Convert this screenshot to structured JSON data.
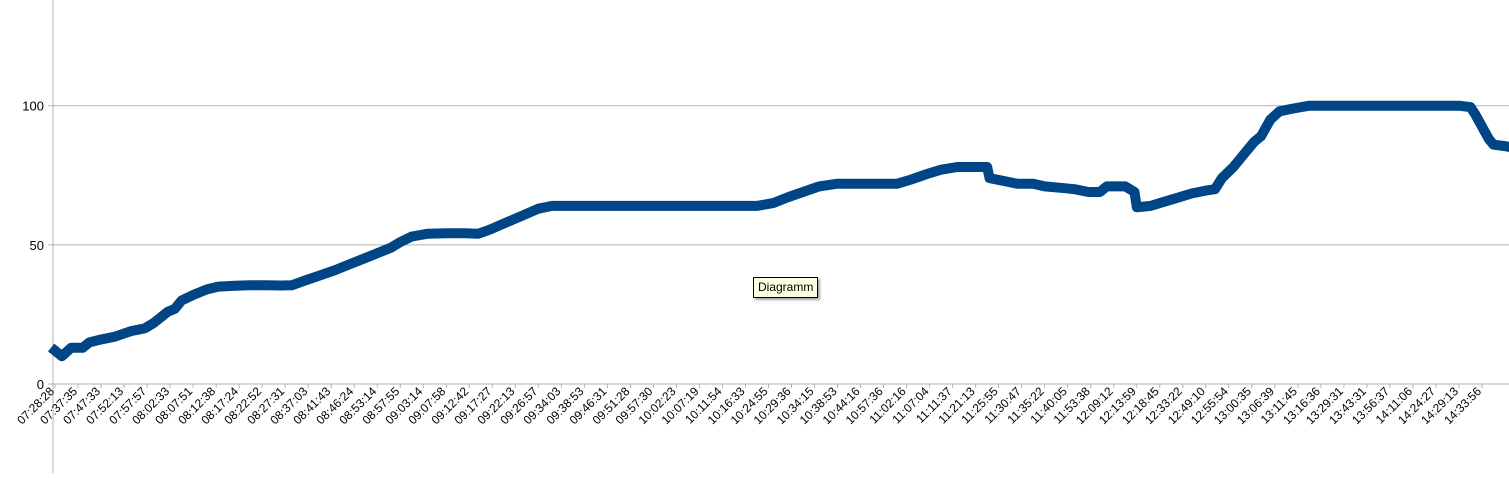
{
  "tooltip": {
    "text": "Diagramm"
  },
  "colors": {
    "series": "#004586",
    "grid": "#b3b3b3",
    "axis": "#b3b3b3",
    "text": "#000000",
    "tooltip_bg": "#ffffe1"
  },
  "chart_data": {
    "type": "line",
    "title": "",
    "xlabel": "",
    "ylabel": "",
    "ylim": [
      0,
      138
    ],
    "y_ticks": [
      0,
      50,
      100
    ],
    "grid": "horizontal",
    "legend": "none",
    "x_tick_labels": [
      "07:28:28",
      "07:37:35",
      "07:47:33",
      "07:52:13",
      "07:57:57",
      "08:02:33",
      "08:07:51",
      "08:12:38",
      "08:17:24",
      "08:22:52",
      "08:27:31",
      "08:37:03",
      "08:41:43",
      "08:46:24",
      "08:53:14",
      "08:57:55",
      "09:03:14",
      "09:07:58",
      "09:12:42",
      "09:17:27",
      "09:22:13",
      "09:26:57",
      "09:34:03",
      "09:38:53",
      "09:46:31",
      "09:51:28",
      "09:57:30",
      "10:02:23",
      "10:07:19",
      "10:11:54",
      "10:16:33",
      "10:24:55",
      "10:29:36",
      "10:34:15",
      "10:38:53",
      "10:44:16",
      "10:57:36",
      "11:02:16",
      "11:07:04",
      "11:11:37",
      "11:21:13",
      "11:25:55",
      "11:30:47",
      "11:35:22",
      "11:40:05",
      "11:53:38",
      "12:09:12",
      "12:13:59",
      "12:18:45",
      "12:33:22",
      "12:49:10",
      "12:55:54",
      "13:00:35",
      "13:06:39",
      "13:11:45",
      "13:16:36",
      "13:29:31",
      "13:43:31",
      "13:56:37",
      "14:11:06",
      "14:24:27",
      "14:29:13",
      "14:33:56"
    ],
    "series": [
      {
        "values": [
          [
            0,
            12
          ],
          [
            0.3,
            10
          ],
          [
            0.7,
            13
          ],
          [
            1.2,
            13
          ],
          [
            1.5,
            15
          ],
          [
            2.0,
            16
          ],
          [
            2.6,
            17
          ],
          [
            3.3,
            19
          ],
          [
            3.9,
            20
          ],
          [
            4.3,
            22
          ],
          [
            4.6,
            24
          ],
          [
            4.9,
            26
          ],
          [
            5.2,
            27
          ],
          [
            5.5,
            30
          ],
          [
            6.0,
            32
          ],
          [
            6.6,
            34
          ],
          [
            7.1,
            35
          ],
          [
            7.8,
            35.3
          ],
          [
            8.5,
            35.5
          ],
          [
            9.2,
            35.5
          ],
          [
            9.8,
            35.4
          ],
          [
            10.3,
            35.5
          ],
          [
            10.8,
            37
          ],
          [
            11.5,
            39
          ],
          [
            12.2,
            41
          ],
          [
            12.8,
            43
          ],
          [
            13.4,
            45
          ],
          [
            14.0,
            47
          ],
          [
            14.6,
            49
          ],
          [
            15.0,
            51
          ],
          [
            15.5,
            53
          ],
          [
            16.2,
            54
          ],
          [
            17.0,
            54.2
          ],
          [
            17.8,
            54.2
          ],
          [
            18.4,
            54
          ],
          [
            18.9,
            55.5
          ],
          [
            19.6,
            58
          ],
          [
            20.3,
            60.5
          ],
          [
            21.0,
            63
          ],
          [
            21.6,
            64
          ],
          [
            23.0,
            64
          ],
          [
            25.0,
            64
          ],
          [
            27.0,
            64
          ],
          [
            29.0,
            64
          ],
          [
            30.5,
            64
          ],
          [
            31.2,
            65
          ],
          [
            31.8,
            67
          ],
          [
            32.5,
            69
          ],
          [
            33.2,
            71
          ],
          [
            34.0,
            72
          ],
          [
            35.0,
            72
          ],
          [
            36.0,
            72
          ],
          [
            36.6,
            72
          ],
          [
            37.2,
            73.5
          ],
          [
            37.9,
            75.5
          ],
          [
            38.5,
            77
          ],
          [
            39.2,
            78
          ],
          [
            40.0,
            78
          ],
          [
            40.5,
            78
          ],
          [
            40.6,
            74
          ],
          [
            41.2,
            73
          ],
          [
            41.8,
            72
          ],
          [
            42.5,
            72
          ],
          [
            43.0,
            71
          ],
          [
            43.7,
            70.5
          ],
          [
            44.3,
            70
          ],
          [
            44.9,
            69
          ],
          [
            45.4,
            69
          ],
          [
            45.7,
            71
          ],
          [
            46.5,
            71
          ],
          [
            46.9,
            69
          ],
          [
            47.0,
            63.5
          ],
          [
            47.6,
            64
          ],
          [
            48.2,
            65.5
          ],
          [
            48.8,
            67
          ],
          [
            49.4,
            68.5
          ],
          [
            50.0,
            69.5
          ],
          [
            50.4,
            70
          ],
          [
            50.7,
            74
          ],
          [
            51.2,
            78
          ],
          [
            51.7,
            83
          ],
          [
            52.1,
            87
          ],
          [
            52.4,
            89
          ],
          [
            52.8,
            95
          ],
          [
            53.2,
            98
          ],
          [
            53.8,
            99
          ],
          [
            54.5,
            100
          ],
          [
            55.5,
            100
          ],
          [
            57.0,
            100
          ],
          [
            59.0,
            100
          ],
          [
            61.0,
            100
          ],
          [
            61.5,
            99.5
          ],
          [
            61.7,
            97
          ],
          [
            61.9,
            94
          ],
          [
            62.1,
            91
          ],
          [
            62.3,
            88
          ],
          [
            62.5,
            86
          ],
          [
            63.0,
            85.5
          ],
          [
            63.3,
            85
          ]
        ]
      }
    ]
  }
}
